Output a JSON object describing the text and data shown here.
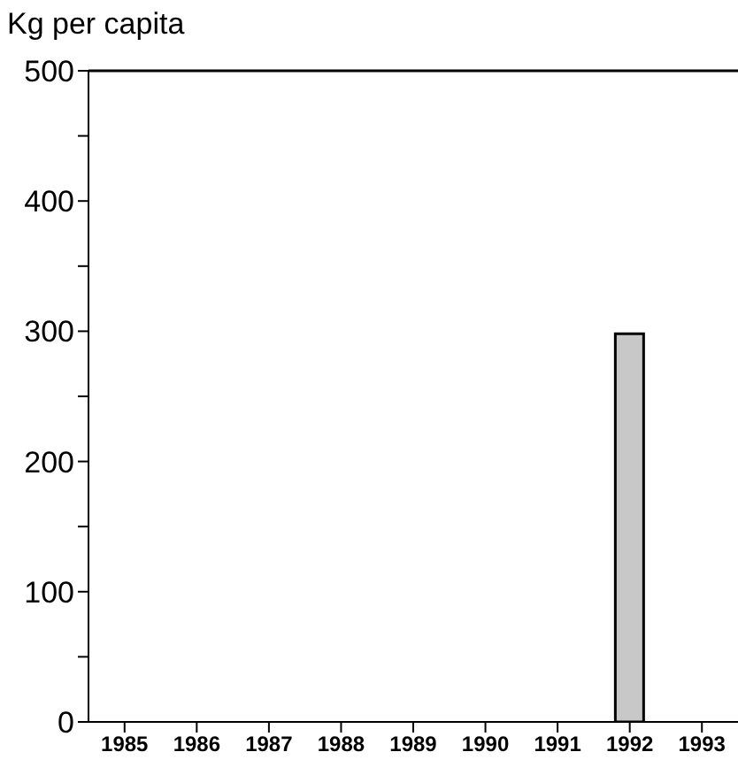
{
  "chart_data": {
    "type": "bar",
    "ylabel": "Kg per capita",
    "categories": [
      "1985",
      "1986",
      "1987",
      "1988",
      "1989",
      "1990",
      "1991",
      "1992",
      "1993"
    ],
    "values": [
      null,
      null,
      null,
      null,
      null,
      null,
      null,
      298,
      null
    ],
    "color": "#c8c8c8",
    "ylim": [
      0,
      500
    ],
    "yticks": [
      0,
      {
        "value": 50,
        "label": null
      },
      100,
      {
        "value": 150,
        "label": null
      },
      200,
      {
        "value": 250,
        "label": null
      },
      300,
      {
        "value": 350,
        "label": null
      },
      400,
      {
        "value": 450,
        "label": null
      },
      500
    ],
    "grid": false
  }
}
